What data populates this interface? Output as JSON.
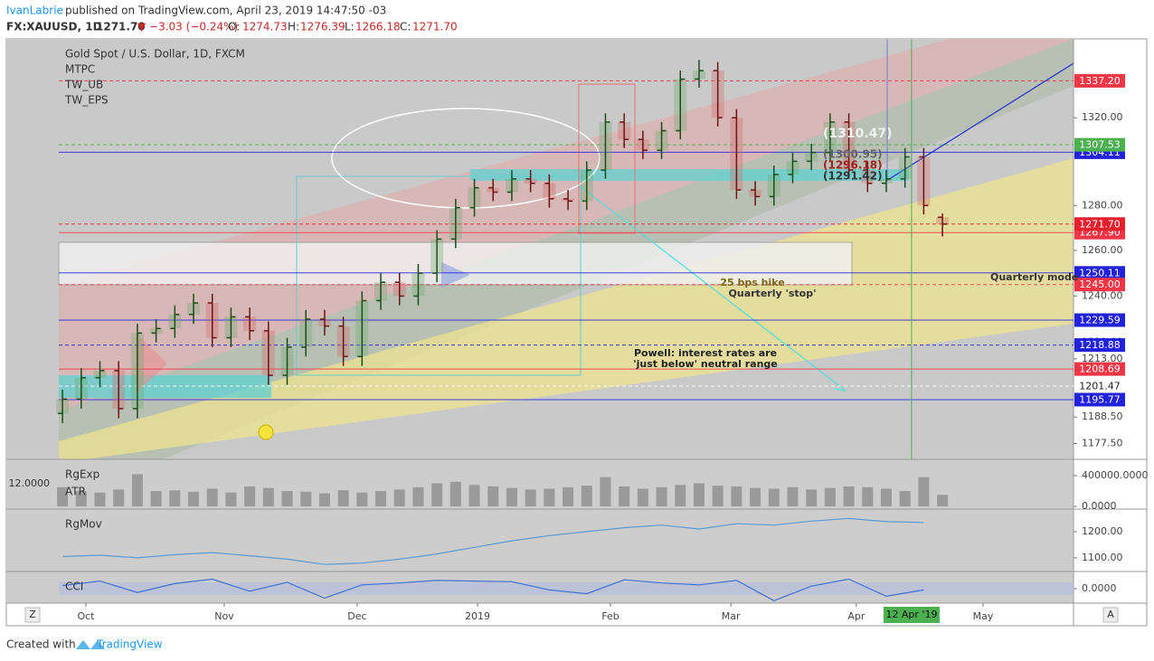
{
  "header": {
    "publisher": "IvanLabrie",
    "published": "published on TradingView.com, April 23, 2019 14:47:50 -03",
    "symbol": "FX:XAUUSD, 1D",
    "last": "1271.70",
    "change": "▼ −3.03 (−0.24%)",
    "ohlc": [
      {
        "label": "O:",
        "value": "1274.73"
      },
      {
        "label": "H:",
        "value": "1276.39"
      },
      {
        "label": "L:",
        "value": "1266.18"
      },
      {
        "label": "C:",
        "value": "1271.70"
      }
    ]
  },
  "footer": {
    "created": "Created with",
    "brand": "TradingView"
  },
  "buttons": {
    "left": "Z",
    "right": "A"
  },
  "chart_data": [
    {
      "type": "candlestick",
      "title": "Gold Spot / U.S. Dollar, 1D, FXCM",
      "indicators": [
        "MTPC",
        "TW_UB",
        "TW_EPS"
      ],
      "open": [
        1190,
        1196,
        1205,
        1208,
        1192,
        1224,
        1226,
        1232,
        1237,
        1222,
        1231,
        1225,
        1206,
        1218,
        1230,
        1227,
        1214,
        1238,
        1246,
        1240,
        1250,
        1265,
        1279,
        1288,
        1286,
        1292,
        1290,
        1283,
        1282,
        1296,
        1318,
        1310,
        1305,
        1314,
        1338,
        1342,
        1320,
        1287,
        1284,
        1294,
        1300,
        1304,
        1318,
        1296,
        1290,
        1292,
        1302,
        1274.73
      ],
      "high": [
        1200,
        1209,
        1212,
        1212,
        1228,
        1230,
        1236,
        1241,
        1241,
        1235,
        1235,
        1229,
        1222,
        1234,
        1234,
        1231,
        1242,
        1250,
        1250,
        1254,
        1269,
        1283,
        1292,
        1292,
        1296,
        1296,
        1294,
        1287,
        1300,
        1322,
        1322,
        1314,
        1318,
        1342,
        1347,
        1346,
        1324,
        1291,
        1298,
        1304,
        1308,
        1322,
        1322,
        1300,
        1296,
        1306,
        1306,
        1276.39
      ],
      "low": [
        1186,
        1192,
        1201,
        1188,
        1188,
        1220,
        1222,
        1228,
        1218,
        1218,
        1221,
        1202,
        1202,
        1214,
        1223,
        1210,
        1210,
        1234,
        1236,
        1236,
        1246,
        1261,
        1275,
        1282,
        1282,
        1286,
        1279,
        1278,
        1278,
        1292,
        1306,
        1301,
        1301,
        1310,
        1334,
        1316,
        1283,
        1280,
        1280,
        1290,
        1296,
        1300,
        1292,
        1286,
        1286,
        1288,
        1276,
        1266.18
      ],
      "close": [
        1196,
        1205,
        1208,
        1192,
        1224,
        1226,
        1232,
        1237,
        1222,
        1231,
        1225,
        1206,
        1218,
        1230,
        1227,
        1214,
        1238,
        1246,
        1240,
        1250,
        1265,
        1279,
        1288,
        1286,
        1292,
        1290,
        1283,
        1282,
        1296,
        1318,
        1310,
        1305,
        1314,
        1338,
        1342,
        1320,
        1287,
        1284,
        1294,
        1300,
        1304,
        1318,
        1296,
        1290,
        1292,
        1302,
        1280,
        1271.7
      ],
      "up_color": "#1b4d1b",
      "down_color": "#6b1414",
      "xlim": [
        -3,
        54
      ],
      "xticks": [
        {
          "value": 1.25,
          "label": "Oct"
        },
        {
          "value": 8.64,
          "label": "Nov"
        },
        {
          "value": 15.74,
          "label": "Dec"
        },
        {
          "value": 22.17,
          "label": "2019"
        },
        {
          "value": 29.27,
          "label": "Feb"
        },
        {
          "value": 35.7,
          "label": "Mar"
        },
        {
          "value": 42.4,
          "label": "Apr"
        },
        {
          "value": 49.17,
          "label": "May"
        }
      ],
      "x_marker": {
        "value": 45.35,
        "label": "12 Apr '19",
        "color": "#4caf50"
      },
      "ylim": [
        1171,
        1357
      ],
      "log_scale": true,
      "yticks": [
        {
          "value": 1320,
          "label": "1320.00"
        },
        {
          "value": 1280,
          "label": "1280.00"
        },
        {
          "value": 1260,
          "label": "1260.00"
        },
        {
          "value": 1240,
          "label": "1240.00"
        },
        {
          "value": 1220,
          "label": "1220.00"
        },
        {
          "value": 1213,
          "label": "1213.00"
        },
        {
          "value": 1188.5,
          "label": "1188.50"
        },
        {
          "value": 1177.5,
          "label": "1177.50"
        }
      ],
      "price_tags": [
        {
          "value": 1337.2,
          "label": "1337.20",
          "color": "#f23645",
          "text_color": "#ffffff"
        },
        {
          "value": 1304.11,
          "label": "1304.11",
          "color": "#2222dd",
          "text_color": "#ffffff"
        },
        {
          "value": 1307.53,
          "label": "1307.53",
          "color": "#4caf50",
          "text_color": "#ffffff"
        },
        {
          "value": 1267.9,
          "label": "1267.90",
          "color": "#f23645",
          "text_color": "#ffffff"
        },
        {
          "value": 1271.7,
          "label": "1271.70",
          "color": "#e8202e",
          "text_color": "#ffffff"
        },
        {
          "value": 1250.11,
          "label": "1250.11",
          "color": "#2222dd",
          "text_color": "#ffffff"
        },
        {
          "value": 1245.0,
          "label": "1245.00",
          "color": "#f23645",
          "text_color": "#ffffff"
        },
        {
          "value": 1229.59,
          "label": "1229.59",
          "color": "#2222dd",
          "text_color": "#ffffff"
        },
        {
          "value": 1218.88,
          "label": "1218.88",
          "color": "#2222dd",
          "text_color": "#ffffff"
        },
        {
          "value": 1208.69,
          "label": "1208.69",
          "color": "#f23645",
          "text_color": "#ffffff"
        },
        {
          "value": 1201.47,
          "label": "1201.47",
          "color": "#ffffff",
          "text_color": "#222222"
        },
        {
          "value": 1195.77,
          "label": "1195.77",
          "color": "#2222dd",
          "text_color": "#ffffff"
        }
      ],
      "annotations": [
        {
          "text": "(1310.47)",
          "color": "#f0f0f0"
        },
        {
          "text": "(1300.95)",
          "color": "#666666"
        },
        {
          "text": "(1296.18)",
          "color": "#a02020"
        },
        {
          "text": "(1291.42)",
          "color": "#333333"
        },
        {
          "text": "25 bps hike",
          "color": "#7a6a10"
        },
        {
          "text": "Quarterly 'stop'",
          "color": "#333333"
        },
        {
          "text": "Quarterly mode",
          "color": "#333333"
        },
        {
          "text": "Powell: interest rates are",
          "color": "#222222"
        },
        {
          "text": "'just below' neutral range",
          "color": "#222222"
        }
      ]
    },
    {
      "type": "bar",
      "title": "RgExp",
      "subtitle": "ATR",
      "side_label": "12.0000",
      "color": "#9a9a9a",
      "values": [
        250000,
        200000,
        180000,
        220000,
        420000,
        200000,
        210000,
        190000,
        230000,
        180000,
        260000,
        240000,
        200000,
        190000,
        170000,
        210000,
        180000,
        200000,
        220000,
        250000,
        300000,
        320000,
        280000,
        260000,
        240000,
        220000,
        230000,
        250000,
        270000,
        380000,
        260000,
        230000,
        250000,
        280000,
        300000,
        270000,
        260000,
        240000,
        230000,
        250000,
        220000,
        240000,
        260000,
        250000,
        230000,
        200000,
        380000,
        150000
      ],
      "ylim": [
        -35000,
        612000
      ],
      "yticks": [
        {
          "value": 400000,
          "label": "400000.0000"
        },
        {
          "value": 0,
          "label": "0.0000"
        }
      ]
    },
    {
      "type": "line",
      "title": "RgMov",
      "color": "#5b9bd5",
      "x": [
        0,
        2,
        4,
        6,
        8,
        10,
        12,
        14,
        16,
        18,
        20,
        22,
        24,
        26,
        28,
        30,
        32,
        34,
        36,
        38,
        40,
        42,
        44,
        46
      ],
      "values": [
        1105,
        1110,
        1100,
        1112,
        1120,
        1108,
        1095,
        1075,
        1080,
        1095,
        1115,
        1140,
        1165,
        1185,
        1200,
        1215,
        1225,
        1210,
        1230,
        1225,
        1240,
        1250,
        1238,
        1235
      ],
      "ylim": [
        1048,
        1286
      ],
      "yticks": [
        {
          "value": 1200,
          "label": "1200.00"
        },
        {
          "value": 1100,
          "label": "1100.00"
        }
      ]
    },
    {
      "type": "line",
      "title": "CCI",
      "color": "#3f6fd0",
      "x": [
        0,
        2,
        4,
        6,
        8,
        10,
        12,
        14,
        16,
        18,
        20,
        22,
        24,
        26,
        28,
        30,
        32,
        34,
        36,
        38,
        40,
        42,
        44,
        46
      ],
      "values": [
        50,
        120,
        -60,
        80,
        150,
        -40,
        100,
        -150,
        60,
        90,
        130,
        120,
        110,
        -20,
        -80,
        140,
        90,
        60,
        130,
        -190,
        40,
        150,
        -120,
        -20
      ],
      "ylim": [
        -229,
        271
      ],
      "yticks": [
        {
          "value": 0,
          "label": "0.0000"
        }
      ]
    }
  ]
}
